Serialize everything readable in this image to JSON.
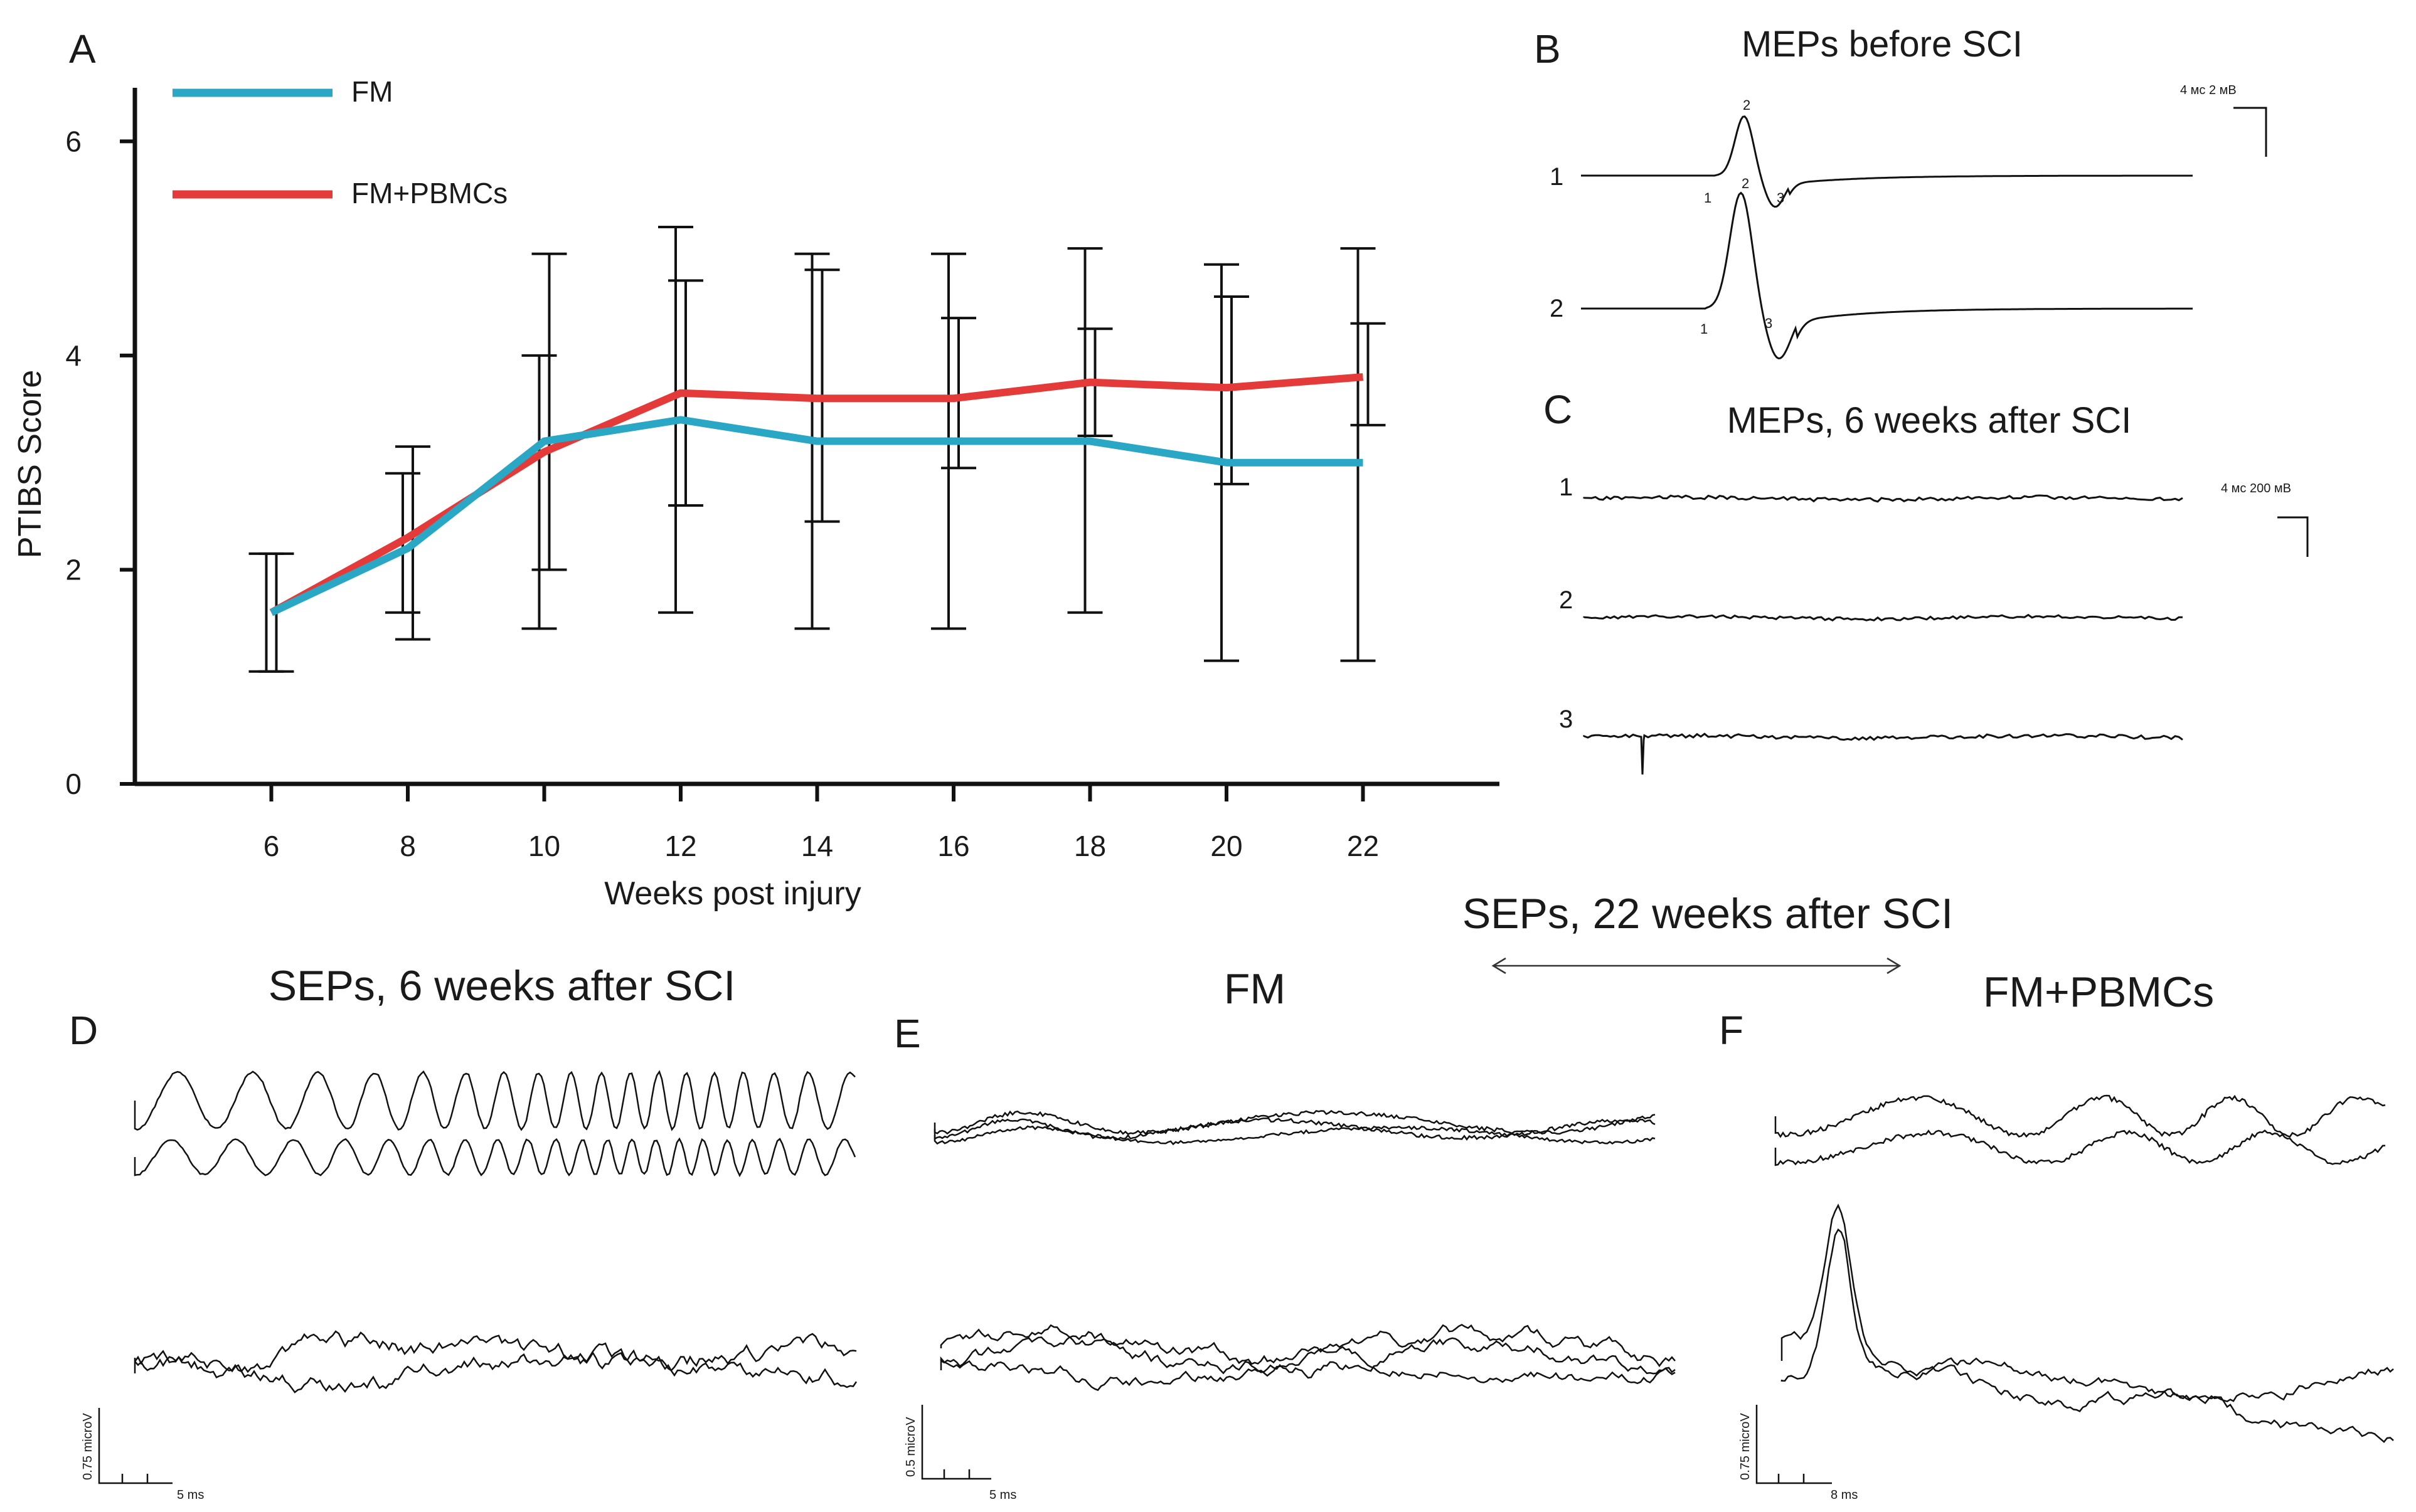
{
  "chart_data": [
    {
      "type": "line",
      "panel": "A",
      "xlabel": "Weeks post injury",
      "ylabel": "PTIBS Score",
      "x": [
        6,
        8,
        10,
        12,
        14,
        16,
        18,
        20,
        22
      ],
      "xlim": [
        4,
        24
      ],
      "ylim": [
        0,
        6.5
      ],
      "y_ticks": [
        0,
        2,
        4,
        6
      ],
      "series": [
        {
          "name": "FM",
          "color": "#2aa7c4",
          "values": [
            1.6,
            2.2,
            3.2,
            3.4,
            3.2,
            3.2,
            3.2,
            3.0,
            3.0
          ],
          "error_low": [
            1.05,
            1.6,
            1.45,
            1.6,
            1.45,
            1.45,
            1.6,
            1.15,
            1.15
          ],
          "error_high": [
            2.15,
            2.9,
            4.0,
            5.2,
            4.95,
            4.95,
            5.0,
            4.85,
            5.0
          ]
        },
        {
          "name": "FM+PBMCs",
          "color": "#e53a3a",
          "values": [
            1.6,
            2.3,
            3.1,
            3.65,
            3.6,
            3.6,
            3.75,
            3.7,
            3.8
          ],
          "error_low": [
            1.05,
            1.35,
            2.0,
            2.6,
            2.45,
            2.95,
            3.25,
            2.8,
            3.35
          ],
          "error_high": [
            2.15,
            3.15,
            4.95,
            4.7,
            4.8,
            4.35,
            4.25,
            4.55,
            4.3
          ]
        }
      ],
      "legend_position": "top-left"
    },
    {
      "type": "line",
      "panel": "B",
      "title": "MEPs before SCI",
      "trace_labels": [
        "1",
        "2"
      ],
      "peak_labels": [
        "1",
        "2",
        "3"
      ],
      "scale_label": "4 мс 2 мВ"
    },
    {
      "type": "line",
      "panel": "C",
      "title": "MEPs, 6 weeks after SCI",
      "trace_labels": [
        "1",
        "2",
        "3"
      ],
      "scale_label": "4 мс 200 мВ"
    },
    {
      "type": "line",
      "panel": "D",
      "title": "SEPs, 6 weeks after SCI",
      "scale_y": "0.75 microV",
      "scale_x": "5 ms"
    },
    {
      "type": "line",
      "panel": "E",
      "title": "FM",
      "scale_y": "0.5 microV",
      "scale_x": "5 ms"
    },
    {
      "type": "line",
      "panel": "F",
      "title": "FM+PBMCs",
      "scale_y": "0.75 microV",
      "scale_x": "8 ms"
    }
  ],
  "group_title": "SEPs, 22 weeks after SCI",
  "panel_letters": {
    "a": "A",
    "b": "B",
    "c": "C",
    "d": "D",
    "e": "E",
    "f": "F"
  }
}
